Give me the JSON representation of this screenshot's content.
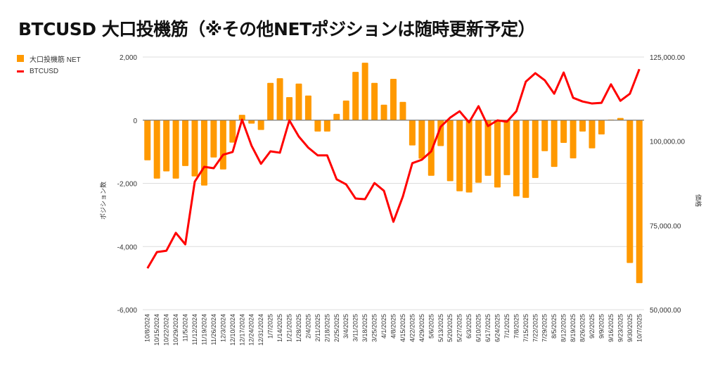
{
  "chart_data": {
    "type": "bar+line",
    "title": "BTCUSD 大口投機筋（※その他NETポジションは随時更新予定）",
    "legend": [
      "大口投機筋 NET",
      "BTCUSD"
    ],
    "legend_placement": "top-left",
    "ylabel_left": "ポジション数",
    "ylabel_right": "価格",
    "ylim_left": [
      -6000,
      2000
    ],
    "ylim_right": [
      50000,
      125000
    ],
    "left_ticks": [
      "2,000",
      "0",
      "-2,000",
      "-4,000",
      "-6,000"
    ],
    "left_tick_values": [
      2000,
      0,
      -2000,
      -4000,
      -6000
    ],
    "right_ticks": [
      "125,000.00",
      "100,000.00",
      "75,000.00",
      "50,000.00"
    ],
    "right_tick_values": [
      125000,
      100000,
      75000,
      50000
    ],
    "grid": true,
    "categories": [
      "10/8/2024",
      "10/15/2024",
      "10/22/2024",
      "10/29/2024",
      "11/5/2024",
      "11/12/2024",
      "11/19/2024",
      "11/26/2024",
      "12/3/2024",
      "12/10/2024",
      "12/17/2024",
      "12/24/2024",
      "12/31/2024",
      "1/7/2025",
      "1/14/2025",
      "1/21/2025",
      "1/28/2025",
      "2/4/2025",
      "2/11/2025",
      "2/18/2025",
      "2/25/2025",
      "3/4/2025",
      "3/11/2025",
      "3/18/2025",
      "3/25/2025",
      "4/1/2025",
      "4/8/2025",
      "4/15/2025",
      "4/22/2025",
      "4/29/2025",
      "5/6/2025",
      "5/13/2025",
      "5/20/2025",
      "5/27/2025",
      "6/3/2025",
      "6/10/2025",
      "6/17/2025",
      "6/24/2025",
      "7/1/2025",
      "7/8/2025",
      "7/15/2025",
      "7/22/2025",
      "7/29/2025",
      "8/5/2025",
      "8/12/2025",
      "8/19/2025",
      "8/26/2025",
      "9/2/2025",
      "9/9/2025",
      "9/16/2025",
      "9/23/2025",
      "9/30/2025",
      "10/7/2025"
    ],
    "series": [
      {
        "name": "大口投機筋 NET",
        "type": "bar",
        "axis": "left",
        "color": "#ff9900",
        "values": [
          -1270,
          -1850,
          -1620,
          -1850,
          -1450,
          -1780,
          -2070,
          -1180,
          -1560,
          -710,
          170,
          -110,
          -310,
          1180,
          1330,
          730,
          1160,
          780,
          -360,
          -360,
          200,
          620,
          1530,
          1820,
          1180,
          490,
          1310,
          580,
          -800,
          -1220,
          -1760,
          -820,
          -1930,
          -2250,
          -2290,
          -1980,
          -1760,
          -2130,
          -1740,
          -2410,
          -2460,
          -1830,
          -980,
          -1480,
          -720,
          -1210,
          -360,
          -890,
          -450,
          20,
          70,
          -4520,
          -5160
        ]
      },
      {
        "name": "BTCUSD",
        "type": "line",
        "axis": "right",
        "color": "#ff0000",
        "values": [
          62300,
          67100,
          67500,
          72800,
          69400,
          88000,
          92400,
          92000,
          96000,
          96800,
          106400,
          98700,
          93300,
          97000,
          96600,
          106200,
          101400,
          98100,
          95800,
          95800,
          88700,
          87200,
          83000,
          82800,
          87600,
          85300,
          76100,
          83600,
          93500,
          94500,
          97000,
          104300,
          107000,
          108900,
          105600,
          110400,
          104500,
          106200,
          105800,
          108900,
          117700,
          120200,
          118100,
          114100,
          120400,
          112900,
          111800,
          111200,
          111400,
          116900,
          112000,
          114100,
          121400
        ]
      }
    ]
  }
}
